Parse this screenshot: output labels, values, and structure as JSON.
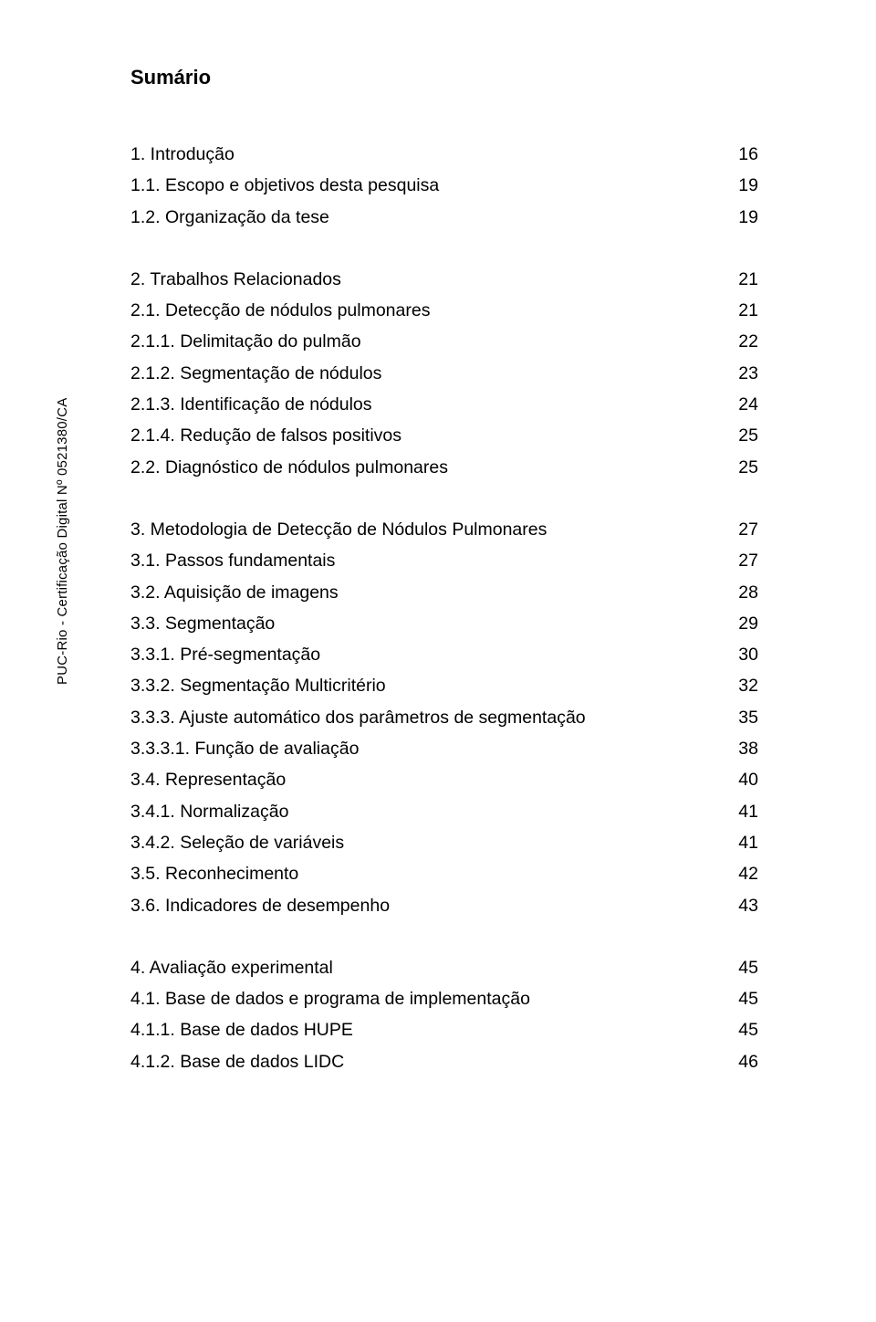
{
  "title": "Sumário",
  "side_label": "PUC-Rio - Certificação Digital Nº 0521380/CA",
  "colors": {
    "text": "#000000",
    "background": "#ffffff"
  },
  "typography": {
    "title_fontsize": 22,
    "title_weight": "bold",
    "body_fontsize": 19.5,
    "line_height": 34.3,
    "side_fontsize": 15,
    "font_family": "Arial"
  },
  "groups": [
    {
      "items": [
        {
          "label": "1. Introdução",
          "page": "16"
        },
        {
          "label": "1.1. Escopo e objetivos desta pesquisa",
          "page": "19"
        },
        {
          "label": "1.2. Organização da tese",
          "page": "19"
        }
      ]
    },
    {
      "items": [
        {
          "label": "2. Trabalhos Relacionados",
          "page": "21"
        },
        {
          "label": "2.1. Detecção de nódulos pulmonares",
          "page": "21"
        },
        {
          "label": "2.1.1. Delimitação do pulmão",
          "page": "22"
        },
        {
          "label": "2.1.2. Segmentação de nódulos",
          "page": "23"
        },
        {
          "label": "2.1.3. Identificação de nódulos",
          "page": "24"
        },
        {
          "label": "2.1.4. Redução de falsos positivos",
          "page": "25"
        },
        {
          "label": "2.2. Diagnóstico de nódulos pulmonares",
          "page": "25"
        }
      ]
    },
    {
      "items": [
        {
          "label": "3. Metodologia de Detecção de Nódulos Pulmonares",
          "page": "27"
        },
        {
          "label": "3.1. Passos fundamentais",
          "page": "27"
        },
        {
          "label": "3.2. Aquisição de imagens",
          "page": "28"
        },
        {
          "label": "3.3. Segmentação",
          "page": "29"
        },
        {
          "label": "3.3.1. Pré-segmentação",
          "page": "30"
        },
        {
          "label": "3.3.2. Segmentação Multicritério",
          "page": "32"
        },
        {
          "label": "3.3.3. Ajuste automático dos parâmetros de segmentação",
          "page": "35"
        },
        {
          "label": "3.3.3.1. Função de avaliação",
          "page": "38"
        },
        {
          "label": "3.4. Representação",
          "page": "40"
        },
        {
          "label": "3.4.1. Normalização",
          "page": "41"
        },
        {
          "label": "3.4.2. Seleção de variáveis",
          "page": "41"
        },
        {
          "label": "3.5. Reconhecimento",
          "page": "42"
        },
        {
          "label": "3.6. Indicadores de desempenho",
          "page": "43"
        }
      ]
    },
    {
      "items": [
        {
          "label": "4. Avaliação experimental",
          "page": "45"
        },
        {
          "label": "4.1. Base de dados e programa de implementação",
          "page": "45"
        },
        {
          "label": "4.1.1. Base de dados HUPE",
          "page": "45"
        },
        {
          "label": "4.1.2. Base de dados LIDC",
          "page": "46"
        }
      ]
    }
  ]
}
